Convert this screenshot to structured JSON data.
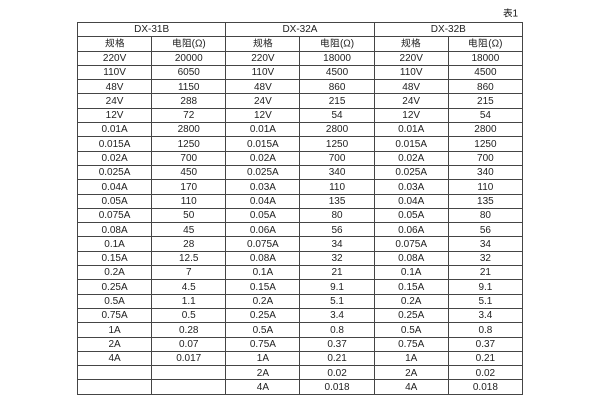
{
  "page": {
    "caption": "表1",
    "background_color": "#ffffff",
    "text_color": "#1f1f1f",
    "border_color": "#454545"
  },
  "chart_data": {
    "type": "table",
    "caption": "表1",
    "column_headers": [
      "规格",
      "电阻(Ω)"
    ],
    "groups": [
      {
        "name": "DX-31B",
        "columns": [
          "规格",
          "电阻(Ω)"
        ],
        "rows": [
          [
            "220V",
            "20000"
          ],
          [
            "110V",
            "6050"
          ],
          [
            "48V",
            "1150"
          ],
          [
            "24V",
            "288"
          ],
          [
            "12V",
            "72"
          ],
          [
            "0.01A",
            "2800"
          ],
          [
            "0.015A",
            "1250"
          ],
          [
            "0.02A",
            "700"
          ],
          [
            "0.025A",
            "450"
          ],
          [
            "0.04A",
            "170"
          ],
          [
            "0.05A",
            "110"
          ],
          [
            "0.075A",
            "50"
          ],
          [
            "0.08A",
            "45"
          ],
          [
            "0.1A",
            "28"
          ],
          [
            "0.15A",
            "12.5"
          ],
          [
            "0.2A",
            "7"
          ],
          [
            "0.25A",
            "4.5"
          ],
          [
            "0.5A",
            "1.1"
          ],
          [
            "0.75A",
            "0.5"
          ],
          [
            "1A",
            "0.28"
          ],
          [
            "2A",
            "0.07"
          ],
          [
            "4A",
            "0.017"
          ]
        ]
      },
      {
        "name": "DX-32A",
        "columns": [
          "规格",
          "电阻(Ω)"
        ],
        "rows": [
          [
            "220V",
            "18000"
          ],
          [
            "110V",
            "4500"
          ],
          [
            "48V",
            "860"
          ],
          [
            "24V",
            "215"
          ],
          [
            "12V",
            "54"
          ],
          [
            "0.01A",
            "2800"
          ],
          [
            "0.015A",
            "1250"
          ],
          [
            "0.02A",
            "700"
          ],
          [
            "0.025A",
            "340"
          ],
          [
            "0.03A",
            "110"
          ],
          [
            "0.04A",
            "135"
          ],
          [
            "0.05A",
            "80"
          ],
          [
            "0.06A",
            "56"
          ],
          [
            "0.075A",
            "34"
          ],
          [
            "0.08A",
            "32"
          ],
          [
            "0.1A",
            "21"
          ],
          [
            "0.15A",
            "9.1"
          ],
          [
            "0.2A",
            "5.1"
          ],
          [
            "0.25A",
            "3.4"
          ],
          [
            "0.5A",
            "0.8"
          ],
          [
            "0.75A",
            "0.37"
          ],
          [
            "1A",
            "0.21"
          ],
          [
            "2A",
            "0.02"
          ],
          [
            "4A",
            "0.018"
          ]
        ]
      },
      {
        "name": "DX-32B",
        "columns": [
          "规格",
          "电阻(Ω)"
        ],
        "rows": [
          [
            "220V",
            "18000"
          ],
          [
            "110V",
            "4500"
          ],
          [
            "48V",
            "860"
          ],
          [
            "24V",
            "215"
          ],
          [
            "12V",
            "54"
          ],
          [
            "0.01A",
            "2800"
          ],
          [
            "0.015A",
            "1250"
          ],
          [
            "0.02A",
            "700"
          ],
          [
            "0.025A",
            "340"
          ],
          [
            "0.03A",
            "110"
          ],
          [
            "0.04A",
            "135"
          ],
          [
            "0.05A",
            "80"
          ],
          [
            "0.06A",
            "56"
          ],
          [
            "0.075A",
            "34"
          ],
          [
            "0.08A",
            "32"
          ],
          [
            "0.1A",
            "21"
          ],
          [
            "0.15A",
            "9.1"
          ],
          [
            "0.2A",
            "5.1"
          ],
          [
            "0.25A",
            "3.4"
          ],
          [
            "0.5A",
            "0.8"
          ],
          [
            "0.75A",
            "0.37"
          ],
          [
            "1A",
            "0.21"
          ],
          [
            "2A",
            "0.02"
          ],
          [
            "4A",
            "0.018"
          ]
        ]
      }
    ]
  }
}
